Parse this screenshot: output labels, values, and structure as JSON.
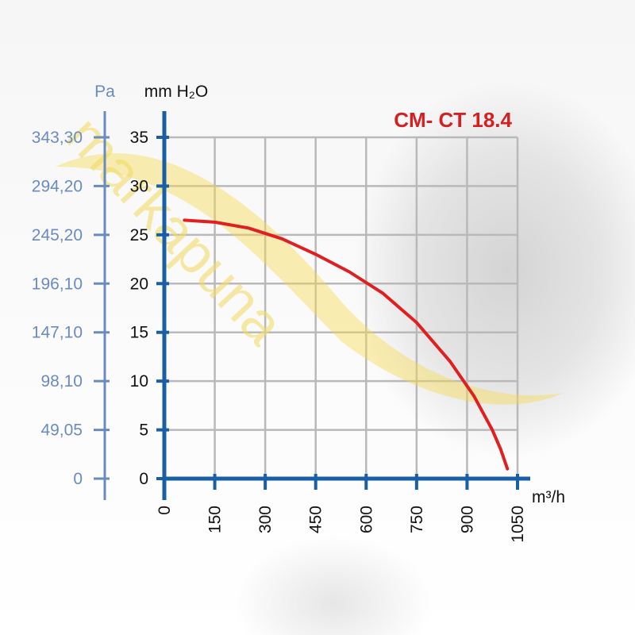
{
  "chart_data": {
    "type": "line",
    "title": "CM- CT 18.4",
    "xlabel": "m³/h",
    "ylabel": "mm H₂O",
    "ylabel_secondary": "Pa",
    "xlim": [
      0,
      1050
    ],
    "ylim": [
      0,
      35
    ],
    "x_ticks": [
      "0",
      "150",
      "300",
      "450",
      "600",
      "750",
      "900",
      "1050"
    ],
    "y_ticks": [
      "0",
      "5",
      "10",
      "15",
      "20",
      "25",
      "30",
      "35"
    ],
    "y_ticks_secondary": [
      "0",
      "49,05",
      "98,10",
      "147,10",
      "196,10",
      "245,20",
      "294,20",
      "343,30"
    ],
    "grid": true,
    "series": [
      {
        "x": [
          60,
          150,
          250,
          350,
          450,
          550,
          650,
          750,
          850,
          920,
          975,
          1000,
          1015,
          1020
        ],
        "y": [
          26.5,
          26.3,
          25.7,
          24.6,
          23.0,
          21.2,
          19.0,
          16.0,
          12.0,
          8.5,
          5.0,
          3.0,
          1.5,
          1.0
        ],
        "color": "#e02020"
      }
    ],
    "watermark": "markapuna"
  }
}
